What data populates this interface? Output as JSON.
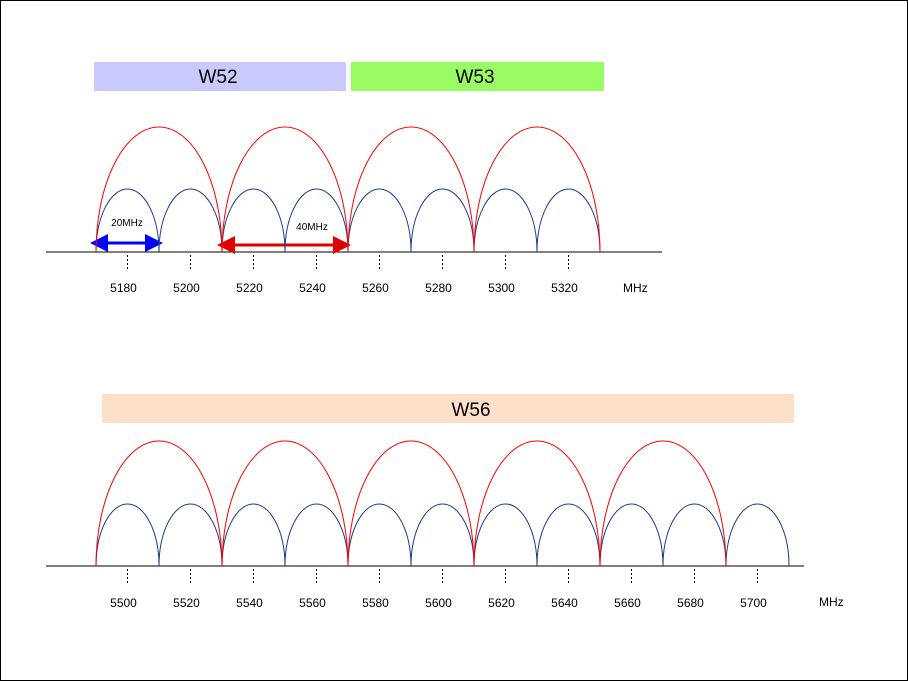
{
  "band_labels": {
    "w52": "W52",
    "w53": "W53",
    "w56": "W56"
  },
  "unit": "MHz",
  "colors": {
    "w52_bar": "#c9c9fb",
    "w53_bar": "#99fb63",
    "w56_bar": "#fde0c9",
    "channel_40mhz": "#ff0000",
    "channel_20mhz": "#1f3a8a",
    "arrow_20mhz": "#0000ff",
    "arrow_40mhz": "#e00000"
  },
  "widths": {
    "narrow": "20MHz",
    "wide": "40MHz"
  },
  "panel_low": {
    "frequencies": [
      "5180",
      "5200",
      "5220",
      "5240",
      "5260",
      "5280",
      "5300",
      "5320"
    ]
  },
  "panel_high": {
    "frequencies": [
      "5500",
      "5520",
      "5540",
      "5560",
      "5580",
      "5600",
      "5620",
      "5640",
      "5660",
      "5680",
      "5700"
    ]
  }
}
